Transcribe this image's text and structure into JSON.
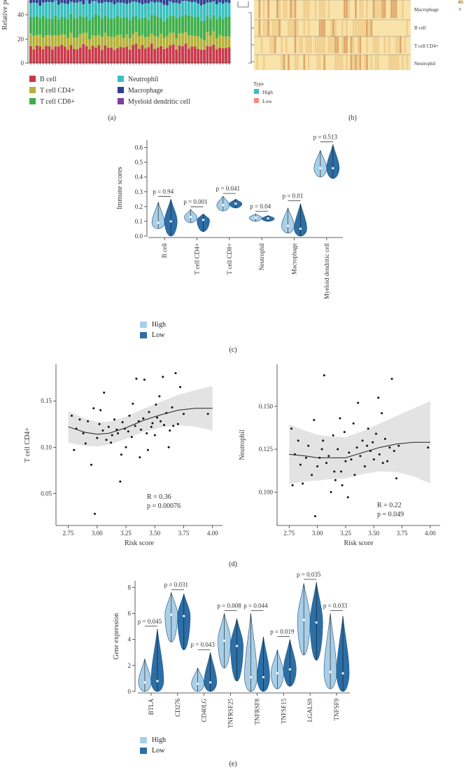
{
  "panel_a": {
    "label": "(a)",
    "y_axis_label": "Relative pe",
    "y_ticks": [
      "0",
      "20",
      "40"
    ],
    "legend": [
      {
        "name": "B cell",
        "color": "#c83a4a"
      },
      {
        "name": "T cell CD4+",
        "color": "#b5b23a"
      },
      {
        "name": "T cell CD8+",
        "color": "#3fae4a"
      },
      {
        "name": "Neutrophil",
        "color": "#3bbfbf"
      },
      {
        "name": "Macrophage",
        "color": "#2f3f8f"
      },
      {
        "name": "Myeloid dendritic cell",
        "color": "#7d3f9d"
      }
    ]
  },
  "panel_b": {
    "label": "(b)",
    "row_labels": [
      "Macrophage",
      "B cell",
      "T cell CD4+",
      "Neutrophil"
    ],
    "legend_title": "Type",
    "legend": [
      {
        "name": "High",
        "color": "#3bbfbf"
      },
      {
        "name": "Low",
        "color": "#f28b82"
      }
    ],
    "scale_labels": [
      "0.1",
      "0"
    ]
  },
  "chart_data": [
    {
      "id": "c",
      "type": "violin",
      "ylabel": "Immune scores",
      "ylim": [
        0,
        0.65
      ],
      "yticks": [
        "0.0",
        "0.1",
        "0.2",
        "0.3",
        "0.4",
        "0.5",
        "0.6"
      ],
      "categories": [
        "B cell",
        "T cell CD4+",
        "T cell CD8+",
        "Neutrophil",
        "Macrophage",
        "Myeloid dendritic cell"
      ],
      "pvalues": [
        "p = 0.94",
        "p = 0.001",
        "p = 0.041",
        "p = 0.04",
        "p = 0.01",
        "p = 0.513"
      ],
      "series": [
        {
          "name": "High",
          "color": "#a9cfe8",
          "median": [
            0.09,
            0.13,
            0.21,
            0.125,
            0.07,
            0.46
          ],
          "min": [
            0.05,
            0.09,
            0.17,
            0.1,
            0.02,
            0.4
          ],
          "max": [
            0.23,
            0.18,
            0.27,
            0.15,
            0.19,
            0.58
          ]
        },
        {
          "name": "Low",
          "color": "#2c6fa6",
          "median": [
            0.1,
            0.11,
            0.22,
            0.12,
            0.05,
            0.46
          ],
          "min": [
            0.0,
            0.03,
            0.19,
            0.1,
            0.0,
            0.39
          ],
          "max": [
            0.25,
            0.15,
            0.25,
            0.14,
            0.22,
            0.62
          ]
        }
      ],
      "legend": [
        "High",
        "Low"
      ],
      "label": "(c)"
    },
    {
      "id": "d1",
      "type": "scatter",
      "xlabel": "Risk score",
      "ylabel": "T cell CD4+",
      "xlim": [
        2.68,
        4.05
      ],
      "ylim": [
        0.02,
        0.185
      ],
      "xticks": [
        "2.75",
        "3.00",
        "3.25",
        "3.50",
        "3.75",
        "4.00"
      ],
      "yticks": [
        "0.05",
        "0.10",
        "0.15"
      ],
      "annotation": [
        "R = 0.36",
        "p = 0.00076"
      ],
      "fit_x": [
        2.75,
        2.9,
        3.0,
        3.1,
        3.25,
        3.4,
        3.55,
        3.7,
        3.85,
        4.0
      ],
      "fit_y": [
        0.122,
        0.116,
        0.114,
        0.115,
        0.121,
        0.129,
        0.135,
        0.14,
        0.142,
        0.142
      ],
      "points": [
        [
          2.78,
          0.134
        ],
        [
          2.8,
          0.097
        ],
        [
          2.82,
          0.12
        ],
        [
          2.85,
          0.13
        ],
        [
          2.88,
          0.115
        ],
        [
          2.9,
          0.104
        ],
        [
          2.92,
          0.128
        ],
        [
          2.95,
          0.081
        ],
        [
          2.97,
          0.142
        ],
        [
          2.98,
          0.028
        ],
        [
          3.0,
          0.11
        ],
        [
          3.02,
          0.125
        ],
        [
          3.03,
          0.14
        ],
        [
          3.05,
          0.118
        ],
        [
          3.06,
          0.159
        ],
        [
          3.08,
          0.108
        ],
        [
          3.1,
          0.122
        ],
        [
          3.12,
          0.105
        ],
        [
          3.13,
          0.113
        ],
        [
          3.15,
          0.13
        ],
        [
          3.17,
          0.119
        ],
        [
          3.18,
          0.115
        ],
        [
          3.2,
          0.063
        ],
        [
          3.21,
          0.092
        ],
        [
          3.22,
          0.127
        ],
        [
          3.24,
          0.12
        ],
        [
          3.25,
          0.1
        ],
        [
          3.27,
          0.117
        ],
        [
          3.28,
          0.134
        ],
        [
          3.3,
          0.111
        ],
        [
          3.31,
          0.147
        ],
        [
          3.33,
          0.123
        ],
        [
          3.34,
          0.174
        ],
        [
          3.36,
          0.128
        ],
        [
          3.37,
          0.089
        ],
        [
          3.38,
          0.119
        ],
        [
          3.4,
          0.131
        ],
        [
          3.41,
          0.173
        ],
        [
          3.43,
          0.115
        ],
        [
          3.44,
          0.097
        ],
        [
          3.45,
          0.138
        ],
        [
          3.47,
          0.122
        ],
        [
          3.48,
          0.126
        ],
        [
          3.5,
          0.113
        ],
        [
          3.51,
          0.146
        ],
        [
          3.52,
          0.132
        ],
        [
          3.54,
          0.155
        ],
        [
          3.55,
          0.128
        ],
        [
          3.57,
          0.176
        ],
        [
          3.58,
          0.124
        ],
        [
          3.6,
          0.137
        ],
        [
          3.62,
          0.1
        ],
        [
          3.63,
          0.118
        ],
        [
          3.65,
          0.143
        ],
        [
          3.66,
          0.123
        ],
        [
          3.68,
          0.18
        ],
        [
          3.7,
          0.125
        ],
        [
          3.72,
          0.165
        ],
        [
          3.75,
          0.136
        ],
        [
          3.96,
          0.136
        ]
      ]
    },
    {
      "id": "d2",
      "type": "scatter",
      "xlabel": "Risk score",
      "ylabel": "Neutrophil",
      "xlim": [
        2.68,
        4.05
      ],
      "ylim": [
        0.083,
        0.172
      ],
      "xticks": [
        "2.75",
        "3.00",
        "3.25",
        "3.50",
        "3.75",
        "4.00"
      ],
      "yticks": [
        "0.100",
        "0.125",
        "0.150"
      ],
      "annotation": [
        "R = 0.22",
        "p = 0.049"
      ],
      "fit_x": [
        2.75,
        2.9,
        3.0,
        3.1,
        3.25,
        3.4,
        3.55,
        3.7,
        3.85,
        4.0
      ],
      "fit_y": [
        0.122,
        0.121,
        0.12,
        0.12,
        0.12,
        0.123,
        0.126,
        0.128,
        0.129,
        0.129
      ],
      "points": [
        [
          2.77,
          0.137
        ],
        [
          2.78,
          0.104
        ],
        [
          2.8,
          0.122
        ],
        [
          2.83,
          0.13
        ],
        [
          2.85,
          0.116
        ],
        [
          2.87,
          0.105
        ],
        [
          2.9,
          0.12
        ],
        [
          2.92,
          0.127
        ],
        [
          2.95,
          0.11
        ],
        [
          2.97,
          0.142
        ],
        [
          2.98,
          0.086
        ],
        [
          3.0,
          0.115
        ],
        [
          3.02,
          0.12
        ],
        [
          3.04,
          0.125
        ],
        [
          3.05,
          0.13
        ],
        [
          3.06,
          0.168
        ],
        [
          3.08,
          0.117
        ],
        [
          3.1,
          0.121
        ],
        [
          3.12,
          0.1
        ],
        [
          3.14,
          0.133
        ],
        [
          3.15,
          0.112
        ],
        [
          3.16,
          0.107
        ],
        [
          3.18,
          0.125
        ],
        [
          3.2,
          0.143
        ],
        [
          3.21,
          0.112
        ],
        [
          3.22,
          0.104
        ],
        [
          3.24,
          0.135
        ],
        [
          3.25,
          0.118
        ],
        [
          3.27,
          0.097
        ],
        [
          3.28,
          0.123
        ],
        [
          3.3,
          0.119
        ],
        [
          3.32,
          0.14
        ],
        [
          3.33,
          0.11
        ],
        [
          3.35,
          0.126
        ],
        [
          3.36,
          0.152
        ],
        [
          3.38,
          0.121
        ],
        [
          3.4,
          0.13
        ],
        [
          3.42,
          0.115
        ],
        [
          3.44,
          0.127
        ],
        [
          3.45,
          0.137
        ],
        [
          3.47,
          0.124
        ],
        [
          3.49,
          0.129
        ],
        [
          3.5,
          0.119
        ],
        [
          3.52,
          0.134
        ],
        [
          3.54,
          0.155
        ],
        [
          3.55,
          0.122
        ],
        [
          3.57,
          0.146
        ],
        [
          3.58,
          0.117
        ],
        [
          3.6,
          0.131
        ],
        [
          3.62,
          0.118
        ],
        [
          3.64,
          0.126
        ],
        [
          3.66,
          0.166
        ],
        [
          3.68,
          0.124
        ],
        [
          3.7,
          0.108
        ],
        [
          3.72,
          0.127
        ],
        [
          3.98,
          0.126
        ]
      ]
    },
    {
      "id": "e",
      "type": "violin",
      "ylabel": "Gene expression",
      "ylim": [
        0,
        8.5
      ],
      "yticks": [
        "0",
        "2",
        "4",
        "6",
        "8"
      ],
      "categories": [
        "BTLA",
        "CD276",
        "CD40LG",
        "TNFRSF25",
        "TNFRSF8",
        "TNFSF15",
        "LGALS9",
        "TNFSF9"
      ],
      "pvalues": [
        "p = 0.045",
        "p = 0.031",
        "p = 0.043",
        "p = 0.008",
        "p = 0.044",
        "p = 0.019",
        "p = 0.035",
        "p = 0.033"
      ],
      "series": [
        {
          "name": "High",
          "color": "#a9cfe8",
          "median": [
            0.7,
            5.9,
            0.6,
            3.9,
            1.1,
            1.4,
            5.5,
            1.5
          ],
          "min": [
            0.0,
            3.8,
            0.0,
            1.8,
            0.0,
            0.2,
            2.8,
            0.2
          ],
          "max": [
            2.5,
            7.6,
            1.8,
            6.0,
            6.0,
            3.2,
            8.3,
            6.0
          ]
        },
        {
          "name": "Low",
          "color": "#2c6fa6",
          "median": [
            0.8,
            5.8,
            0.7,
            3.5,
            1.1,
            1.7,
            5.3,
            1.4
          ],
          "min": [
            0.0,
            3.2,
            0.0,
            0.8,
            0.0,
            0.4,
            2.4,
            0.0
          ],
          "max": [
            4.8,
            7.5,
            3.0,
            5.6,
            4.2,
            4.0,
            8.4,
            5.8
          ]
        }
      ],
      "legend": [
        "High",
        "Low"
      ],
      "label": "(e)"
    }
  ],
  "panel_d_label": "(d)"
}
